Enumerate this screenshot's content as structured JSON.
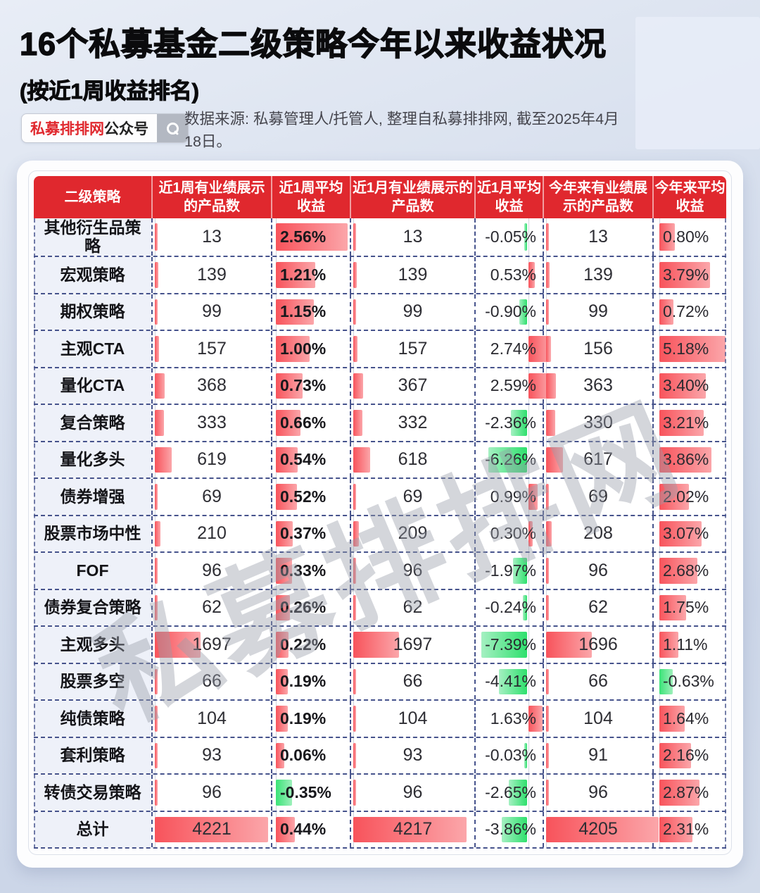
{
  "page": {
    "title": "16个私募基金二级策略今年以来收益状况",
    "subtitle": "(按近1周收益排名)",
    "source_note": "数据来源: 私募管理人/托管人, 整理自私募排排网, 截至2025年4月18日。",
    "watermark": "私募排排网"
  },
  "badge": {
    "brand": "私募排排网",
    "suffix": "公众号",
    "search_icon": "magnifier-icon"
  },
  "colors": {
    "header_red": "#e0282e",
    "positive_bar_start": "#f8535b",
    "positive_bar_end": "#fba6aa",
    "negative_bar_start": "#3ae377",
    "negative_bar_end": "#9ef0bb",
    "grid_dash": "#46538c",
    "name_cell_bg": "#eef1f9"
  },
  "chart_data": {
    "type": "table",
    "title": "16个私募基金二级策略今年以来收益状况(按近1周收益排名)",
    "columns": [
      "二级策略",
      "近1周有业绩展示的产品数",
      "近1周平均收益",
      "近1月有业绩展示的产品数",
      "近1月平均收益",
      "今年来有业绩展示的产品数",
      "今年来平均收益"
    ],
    "rows": [
      [
        "其他衍生品策略",
        "13",
        "2.56%",
        "13",
        "-0.05%",
        "13",
        "0.80%"
      ],
      [
        "宏观策略",
        "139",
        "1.21%",
        "139",
        "0.53%",
        "139",
        "3.79%"
      ],
      [
        "期权策略",
        "99",
        "1.15%",
        "99",
        "-0.90%",
        "99",
        "0.72%"
      ],
      [
        "主观CTA",
        "157",
        "1.00%",
        "157",
        "2.74%",
        "156",
        "5.18%"
      ],
      [
        "量化CTA",
        "368",
        "0.73%",
        "367",
        "2.59%",
        "363",
        "3.40%"
      ],
      [
        "复合策略",
        "333",
        "0.66%",
        "332",
        "-2.36%",
        "330",
        "3.21%"
      ],
      [
        "量化多头",
        "619",
        "0.54%",
        "618",
        "-6.26%",
        "617",
        "3.86%"
      ],
      [
        "债券增强",
        "69",
        "0.52%",
        "69",
        "0.99%",
        "69",
        "2.02%"
      ],
      [
        "股票市场中性",
        "210",
        "0.37%",
        "209",
        "0.30%",
        "208",
        "3.07%"
      ],
      [
        "FOF",
        "96",
        "0.33%",
        "96",
        "-1.97%",
        "96",
        "2.68%"
      ],
      [
        "债券复合策略",
        "62",
        "0.26%",
        "62",
        "-0.24%",
        "62",
        "1.75%"
      ],
      [
        "主观多头",
        "1697",
        "0.22%",
        "1697",
        "-7.39%",
        "1696",
        "1.11%"
      ],
      [
        "股票多空",
        "66",
        "0.19%",
        "66",
        "-4.41%",
        "66",
        "-0.63%"
      ],
      [
        "纯债策略",
        "104",
        "0.19%",
        "104",
        "1.63%",
        "104",
        "1.64%"
      ],
      [
        "套利策略",
        "93",
        "0.06%",
        "93",
        "-0.03%",
        "91",
        "2.16%"
      ],
      [
        "转债交易策略",
        "96",
        "-0.35%",
        "96",
        "-2.65%",
        "96",
        "2.87%"
      ]
    ],
    "total_row": [
      "总计",
      "4221",
      "0.44%",
      "4217",
      "-3.86%",
      "4205",
      "2.31%"
    ]
  }
}
